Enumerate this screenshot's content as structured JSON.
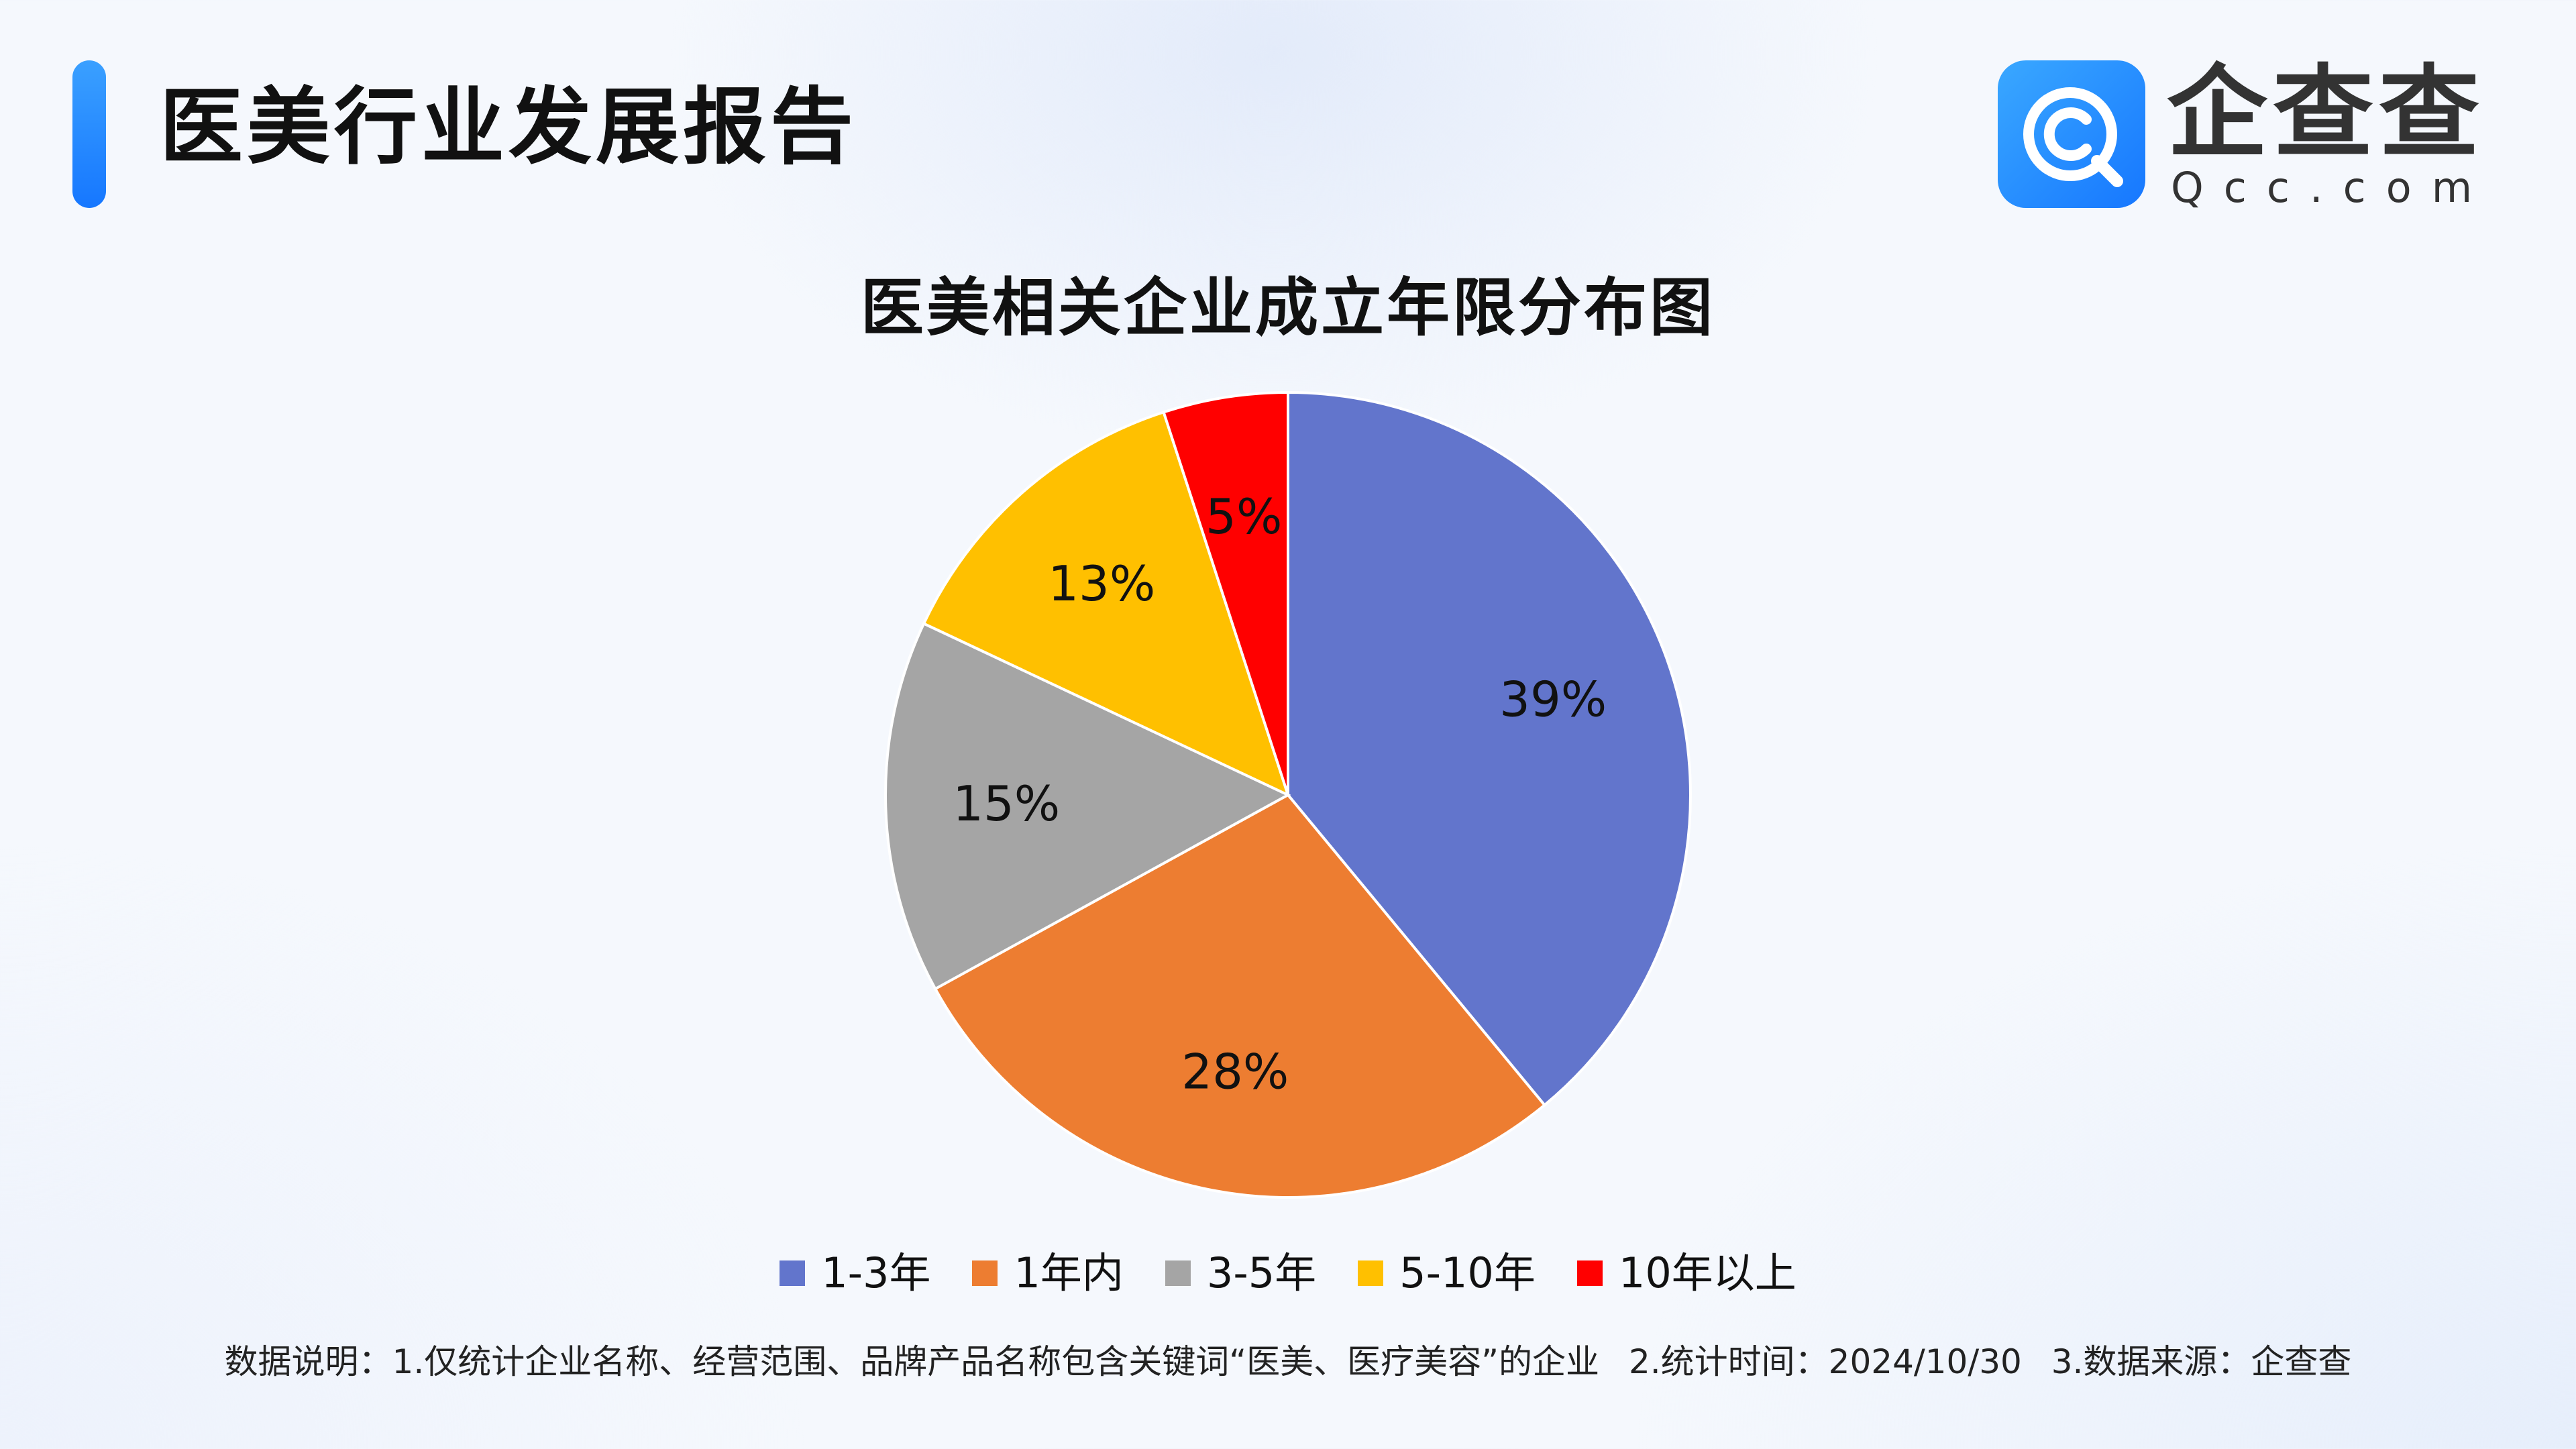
{
  "header": {
    "title": "医美行业发展报告",
    "accent_color": "#1677ff"
  },
  "logo": {
    "icon": "qcc-logo-icon",
    "name_cn": "企查查",
    "domain": "Qcc.com",
    "tile_color": "#1677ff"
  },
  "chart_data": {
    "type": "pie",
    "title": "医美相关企业成立年限分布图",
    "categories": [
      "1-3年",
      "1年内",
      "3-5年",
      "5-10年",
      "10年以上"
    ],
    "values": [
      39,
      28,
      15,
      13,
      5
    ],
    "labels": [
      "39%",
      "28%",
      "15%",
      "13%",
      "5%"
    ],
    "unit": "%",
    "colors": [
      "#6275cc",
      "#ed7d31",
      "#a5a5a5",
      "#ffc000",
      "#ff0000"
    ],
    "start": "12 o'clock",
    "direction": "clockwise",
    "legend_position": "bottom"
  },
  "footnote": {
    "text": "数据说明：1.仅统计企业名称、经营范围、品牌产品名称包含关键词“医美、医疗美容”的企业 2.统计时间：2024/10/30 3.数据来源：企查查"
  }
}
